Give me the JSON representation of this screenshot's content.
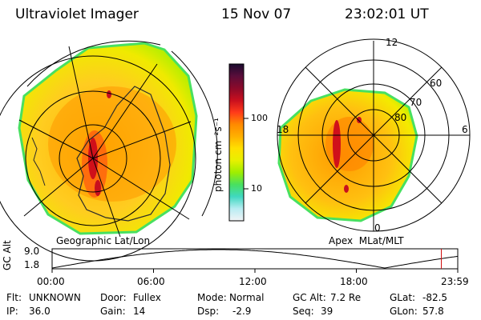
{
  "header": {
    "instrument": "Ultraviolet Imager",
    "date": "15 Nov 07",
    "time": "23:02:01 UT"
  },
  "left_map": {
    "caption": "Geographic Lat/Lon"
  },
  "right_map": {
    "caption": "Apex  MLat/MLT",
    "lat_labels": [
      "60",
      "70",
      "80"
    ],
    "mlt_labels": [
      "12",
      "18",
      "6",
      "0"
    ]
  },
  "colorbar": {
    "unit_label": "photon cm⁻²s⁻¹",
    "ticks": [
      "100",
      "10"
    ],
    "colors": [
      "#1a0b2e",
      "#5a0d3a",
      "#8b0a2a",
      "#c80f1e",
      "#ff3a1a",
      "#ff8a00",
      "#ffb000",
      "#ffe000",
      "#e8f000",
      "#9fee00",
      "#48e060",
      "#40d8c0",
      "#b8ecf2",
      "#f2f4f6"
    ]
  },
  "altitude_plot": {
    "ylabel": "GC Alt",
    "ymax": "9.0",
    "ymin": "1.8",
    "x_ticks": [
      "00:00",
      "06:00",
      "12:00",
      "18:00",
      "23:59"
    ],
    "current_marker_hour": 23.03
  },
  "status": {
    "flt_label": "Flt:",
    "flt_value": "UNKNOWN",
    "door_label": "Door:",
    "door_value": "Fullex",
    "mode_label": "Mode:",
    "mode_value": "Normal",
    "gcalt_label": "GC Alt:",
    "gcalt_value": "7.2 Re",
    "glat_label": "GLat:",
    "glat_value": "-82.5",
    "ip_label": "IP:",
    "ip_value": "36.0",
    "gain_label": "Gain:",
    "gain_value": "14",
    "dsp_label": "Dsp:",
    "dsp_value": "-2.9",
    "seq_label": "Seq:",
    "seq_value": "39",
    "glon_label": "GLon:",
    "glon_value": "57.8"
  }
}
